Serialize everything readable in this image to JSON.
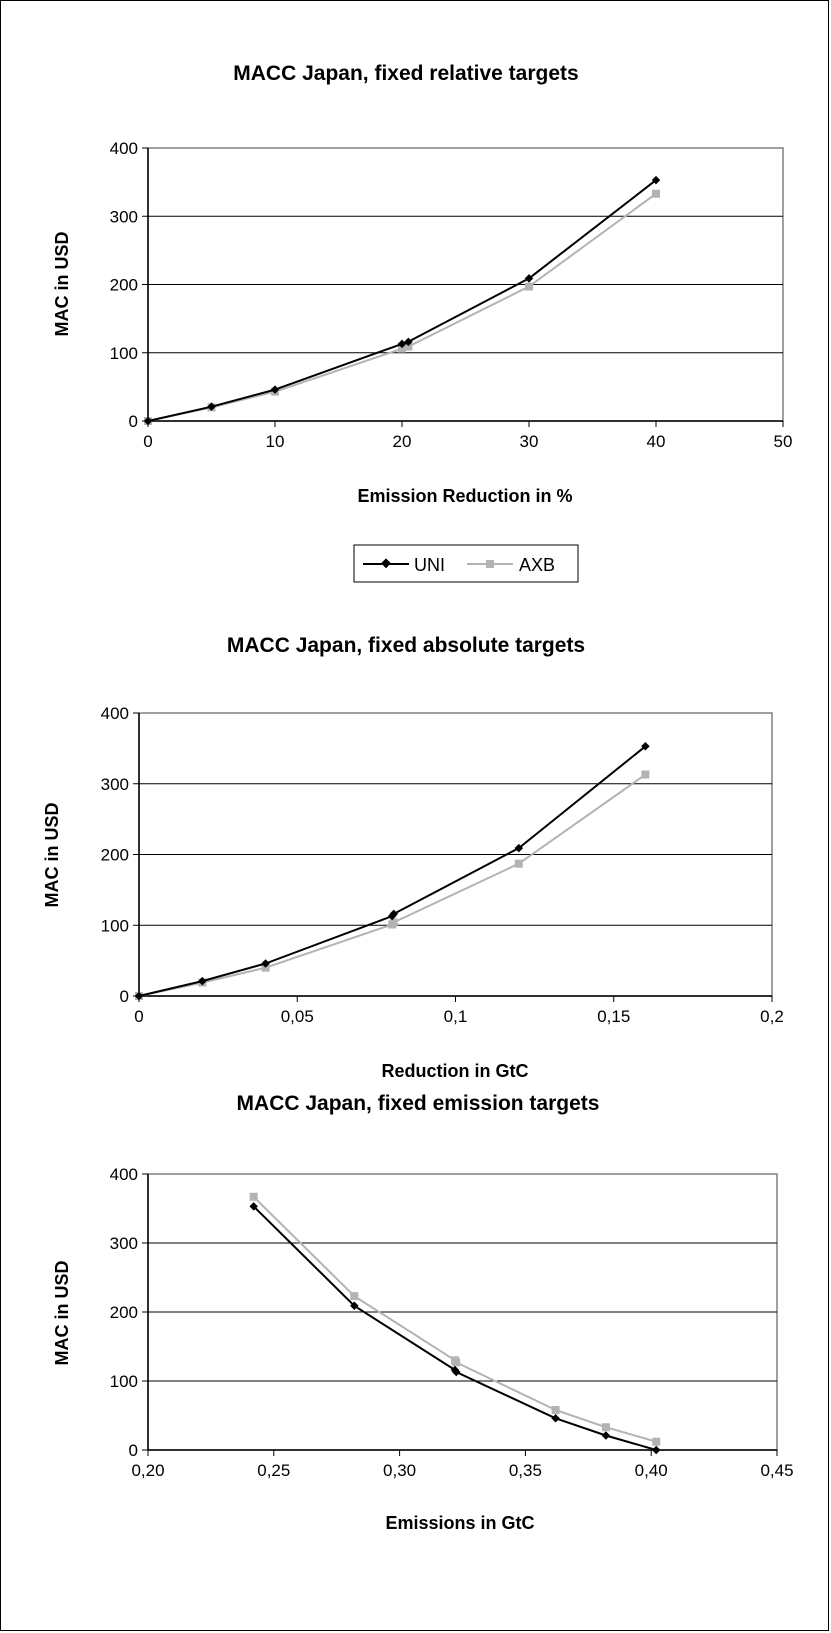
{
  "chart_data": [
    {
      "type": "line",
      "title": "MACC Japan, fixed relative targets",
      "xlabel": "Emission Reduction in %",
      "ylabel": "MAC in USD",
      "xlim": [
        0,
        50
      ],
      "ylim": [
        0,
        400
      ],
      "xticks": [
        0,
        10,
        20,
        30,
        40,
        50
      ],
      "xtick_labels": [
        "0",
        "10",
        "20",
        "30",
        "40",
        "50"
      ],
      "yticks": [
        0,
        100,
        200,
        300,
        400
      ],
      "ytick_labels": [
        "0",
        "100",
        "200",
        "300",
        "400"
      ],
      "grid": "horizontal",
      "legend": "bottom",
      "series": [
        {
          "name": "UNI",
          "color": "#000000",
          "marker": "diamond",
          "x": [
            0,
            5,
            10,
            20,
            20.5,
            30,
            40
          ],
          "y": [
            0,
            21,
            46,
            113,
            116,
            209,
            353
          ]
        },
        {
          "name": "AXB",
          "color": "#b3b3b3",
          "marker": "square",
          "x": [
            0,
            5,
            10,
            20,
            20.5,
            30,
            40
          ],
          "y": [
            0,
            20,
            43,
            106,
            109,
            197,
            333
          ]
        }
      ]
    },
    {
      "type": "line",
      "title": "MACC Japan, fixed absolute targets",
      "xlabel": "Reduction in GtC",
      "ylabel": "MAC in USD",
      "xlim": [
        0,
        0.2
      ],
      "ylim": [
        0,
        400
      ],
      "xticks": [
        0,
        0.05,
        0.1,
        0.15,
        0.2
      ],
      "xtick_labels": [
        "0",
        "0,05",
        "0,1",
        "0,15",
        "0,2"
      ],
      "yticks": [
        0,
        100,
        200,
        300,
        400
      ],
      "ytick_labels": [
        "0",
        "100",
        "200",
        "300",
        "400"
      ],
      "grid": "horizontal",
      "legend": "none",
      "series": [
        {
          "name": "UNI",
          "color": "#000000",
          "marker": "diamond",
          "x": [
            0,
            0.02,
            0.04,
            0.08,
            0.0805,
            0.12,
            0.16
          ],
          "y": [
            0,
            21,
            46,
            113,
            116,
            209,
            353
          ]
        },
        {
          "name": "AXB",
          "color": "#b3b3b3",
          "marker": "square",
          "x": [
            0,
            0.02,
            0.04,
            0.08,
            0.0805,
            0.12,
            0.16
          ],
          "y": [
            0,
            19,
            40,
            101,
            104,
            187,
            313
          ]
        }
      ]
    },
    {
      "type": "line",
      "title": "MACC Japan, fixed emission targets",
      "xlabel": "Emissions in GtC",
      "ylabel": "MAC in USD",
      "xlim": [
        0.2,
        0.45
      ],
      "ylim": [
        0,
        400
      ],
      "xticks": [
        0.2,
        0.25,
        0.3,
        0.35,
        0.4,
        0.45
      ],
      "xtick_labels": [
        "0,20",
        "0,25",
        "0,30",
        "0,35",
        "0,40",
        "0,45"
      ],
      "yticks": [
        0,
        100,
        200,
        300,
        400
      ],
      "ytick_labels": [
        "0",
        "100",
        "200",
        "300",
        "400"
      ],
      "grid": "horizontal",
      "legend": "none",
      "series": [
        {
          "name": "UNI",
          "color": "#000000",
          "marker": "diamond",
          "x": [
            0.242,
            0.282,
            0.322,
            0.3225,
            0.362,
            0.382,
            0.402
          ],
          "y": [
            353,
            209,
            116,
            113,
            46,
            21,
            0
          ]
        },
        {
          "name": "AXB",
          "color": "#b3b3b3",
          "marker": "square",
          "x": [
            0.242,
            0.282,
            0.322,
            0.3225,
            0.362,
            0.382,
            0.402
          ],
          "y": [
            367,
            223,
            130,
            127,
            58,
            33,
            12
          ]
        }
      ]
    }
  ]
}
